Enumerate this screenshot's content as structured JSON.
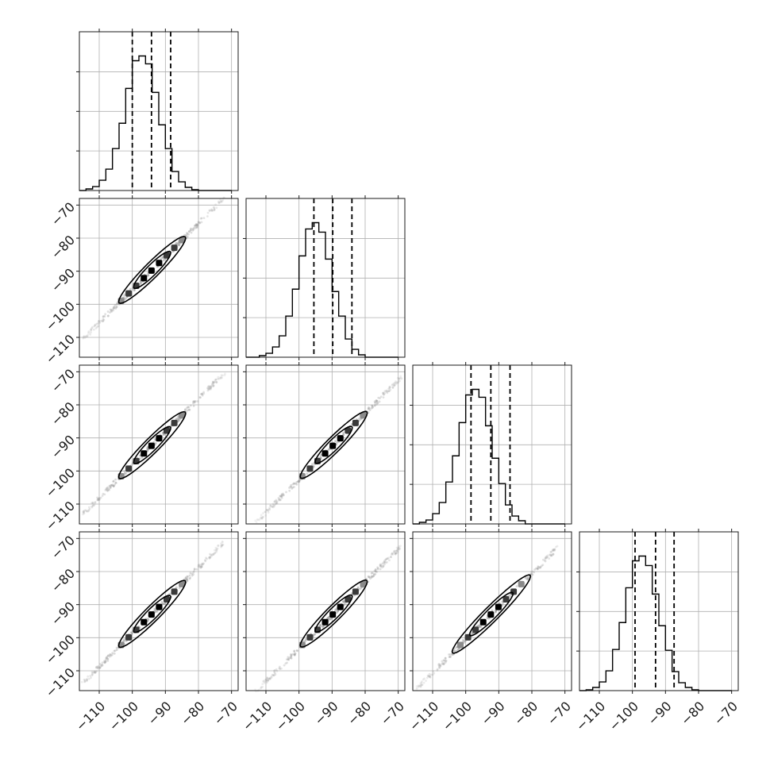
{
  "chart_data": {
    "type": "corner",
    "parameter_count": 4,
    "axis_range": [
      -116,
      -68
    ],
    "x_ticks": [
      -110,
      -100,
      -90,
      -80,
      -70
    ],
    "y_ticks": [
      -110,
      -100,
      -90,
      -80,
      -70
    ],
    "x_tick_labels": [
      "−110",
      "−100",
      "−90",
      "−80",
      "−70"
    ],
    "y_tick_labels": [
      "−110",
      "−100",
      "−90",
      "−80",
      "−70"
    ],
    "grid": true,
    "colors": {
      "line": "#000000",
      "grid": "#b0b0b0",
      "points": "#9a9a9a",
      "fill": "#222222"
    },
    "marginals": [
      {
        "edges": [
          -116,
          -114,
          -112,
          -110,
          -108,
          -106,
          -104,
          -102,
          -100,
          -98,
          -96,
          -94,
          -92,
          -90,
          -88,
          -86,
          -84,
          -82,
          -80,
          -78,
          -76,
          -74,
          -72,
          -70
        ],
        "counts": [
          0,
          2,
          5,
          13,
          27,
          53,
          85,
          129,
          164,
          170,
          160,
          124,
          83,
          53,
          24,
          11,
          4,
          1,
          0,
          0,
          0,
          0,
          0
        ],
        "quantiles": [
          -100,
          -94.2,
          -88.4
        ]
      },
      {
        "edges": [
          -116,
          -114,
          -112,
          -110,
          -108,
          -106,
          -104,
          -102,
          -100,
          -98,
          -96,
          -94,
          -92,
          -90,
          -88,
          -86,
          -84,
          -82,
          -80,
          -78,
          -76,
          -74,
          -72,
          -70
        ],
        "counts": [
          0,
          0,
          2,
          5,
          13,
          27,
          52,
          86,
          128,
          162,
          170,
          158,
          124,
          83,
          52,
          23,
          10,
          3,
          0,
          0,
          0,
          0,
          0
        ],
        "quantiles": [
          -95.5,
          -89.8,
          -84
        ]
      },
      {
        "edges": [
          -116,
          -114,
          -112,
          -110,
          -108,
          -106,
          -104,
          -102,
          -100,
          -98,
          -96,
          -94,
          -92,
          -90,
          -88,
          -86,
          -84,
          -82,
          -80,
          -78,
          -76,
          -74,
          -72,
          -70
        ],
        "counts": [
          0,
          2,
          5,
          13,
          27,
          53,
          86,
          128,
          163,
          170,
          160,
          124,
          83,
          51,
          24,
          10,
          4,
          0,
          0,
          0,
          0,
          0,
          0
        ],
        "quantiles": [
          -98.4,
          -92.4,
          -86.6
        ]
      },
      {
        "edges": [
          -116,
          -114,
          -112,
          -110,
          -108,
          -106,
          -104,
          -102,
          -100,
          -98,
          -96,
          -94,
          -92,
          -90,
          -88,
          -86,
          -84,
          -82,
          -80,
          -78,
          -76,
          -74,
          -72,
          -70
        ],
        "counts": [
          0,
          1,
          4,
          11,
          25,
          52,
          86,
          130,
          164,
          170,
          158,
          122,
          82,
          51,
          24,
          10,
          4,
          1,
          0,
          0,
          0,
          0,
          0
        ],
        "quantiles": [
          -99.2,
          -93,
          -87.4
        ]
      }
    ],
    "pair_panels": [
      {
        "row": 1,
        "col": 0,
        "mean": [
          -94.2,
          -89.8
        ],
        "contour_extent": [
          -104,
          -84
        ],
        "scatter_extent": [
          -115,
          -72
        ]
      },
      {
        "row": 2,
        "col": 0,
        "mean": [
          -94.2,
          -92.4
        ],
        "contour_extent": [
          -104,
          -84
        ],
        "scatter_extent": [
          -115,
          -72
        ]
      },
      {
        "row": 2,
        "col": 1,
        "mean": [
          -89.8,
          -92.4
        ],
        "contour_extent": [
          -99.5,
          -79.5
        ],
        "scatter_extent": [
          -113,
          -69
        ]
      },
      {
        "row": 3,
        "col": 0,
        "mean": [
          -94.2,
          -93.0
        ],
        "contour_extent": [
          -104,
          -84
        ],
        "scatter_extent": [
          -115,
          -72
        ]
      },
      {
        "row": 3,
        "col": 1,
        "mean": [
          -89.8,
          -93.0
        ],
        "contour_extent": [
          -99.5,
          -79.5
        ],
        "scatter_extent": [
          -113,
          -69
        ]
      },
      {
        "row": 3,
        "col": 2,
        "mean": [
          -92.4,
          -93.0
        ],
        "contour_extent": [
          -104,
          -80.5
        ],
        "scatter_extent": [
          -115,
          -72
        ]
      }
    ]
  }
}
